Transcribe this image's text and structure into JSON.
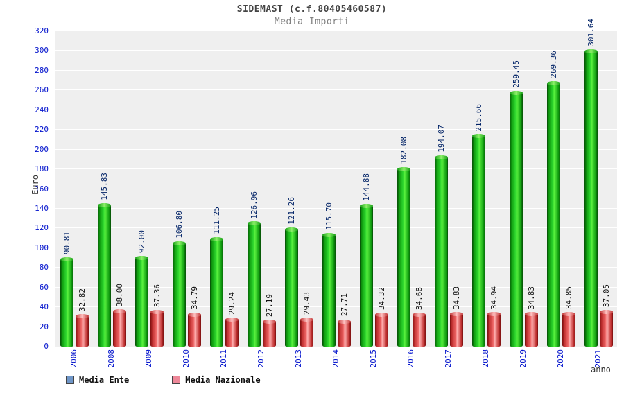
{
  "chart_data": {
    "type": "bar",
    "title": "SIDEMAST (c.f.80405460587)",
    "subtitle": "Media Importi",
    "ylabel": "Euro",
    "xlabel": "anno",
    "ylim": [
      0,
      320
    ],
    "ytick_step": 20,
    "grid": true,
    "legend_position": "bottom-left",
    "plot_bg": "#efefef",
    "axis_text_color": "#0011cc",
    "categories": [
      "2006",
      "2008",
      "2009",
      "2010",
      "2011",
      "2012",
      "2013",
      "2014",
      "2015",
      "2016",
      "2017",
      "2018",
      "2019",
      "2020",
      "2021"
    ],
    "series": [
      {
        "name": "Media Ente",
        "bar_color": "#22cc22",
        "label_color": "#002266",
        "legend_color": "#6f96c8",
        "values": [
          90.81,
          145.83,
          92.0,
          106.8,
          111.25,
          126.96,
          121.26,
          115.7,
          144.88,
          182.08,
          194.07,
          215.66,
          259.45,
          269.36,
          301.64
        ],
        "labels": [
          "90.81",
          "145.83",
          "92.00",
          "106.80",
          "111.25",
          "126.96",
          "121.26",
          "115.70",
          "144.88",
          "182.08",
          "194.07",
          "215.66",
          "259.45",
          "269.36",
          "301.64"
        ]
      },
      {
        "name": "Media Nazionale",
        "bar_color": "#dd4444",
        "label_color": "#111111",
        "legend_color": "#ee8899",
        "values": [
          32.82,
          38.0,
          37.36,
          34.79,
          29.24,
          27.19,
          29.43,
          27.71,
          34.32,
          34.68,
          34.83,
          34.94,
          34.83,
          34.85,
          37.05
        ],
        "labels": [
          "32.82",
          "38.00",
          "37.36",
          "34.79",
          "29.24",
          "27.19",
          "29.43",
          "27.71",
          "34.32",
          "34.68",
          "34.83",
          "34.94",
          "34.83",
          "34.85",
          "37.05"
        ]
      }
    ]
  }
}
